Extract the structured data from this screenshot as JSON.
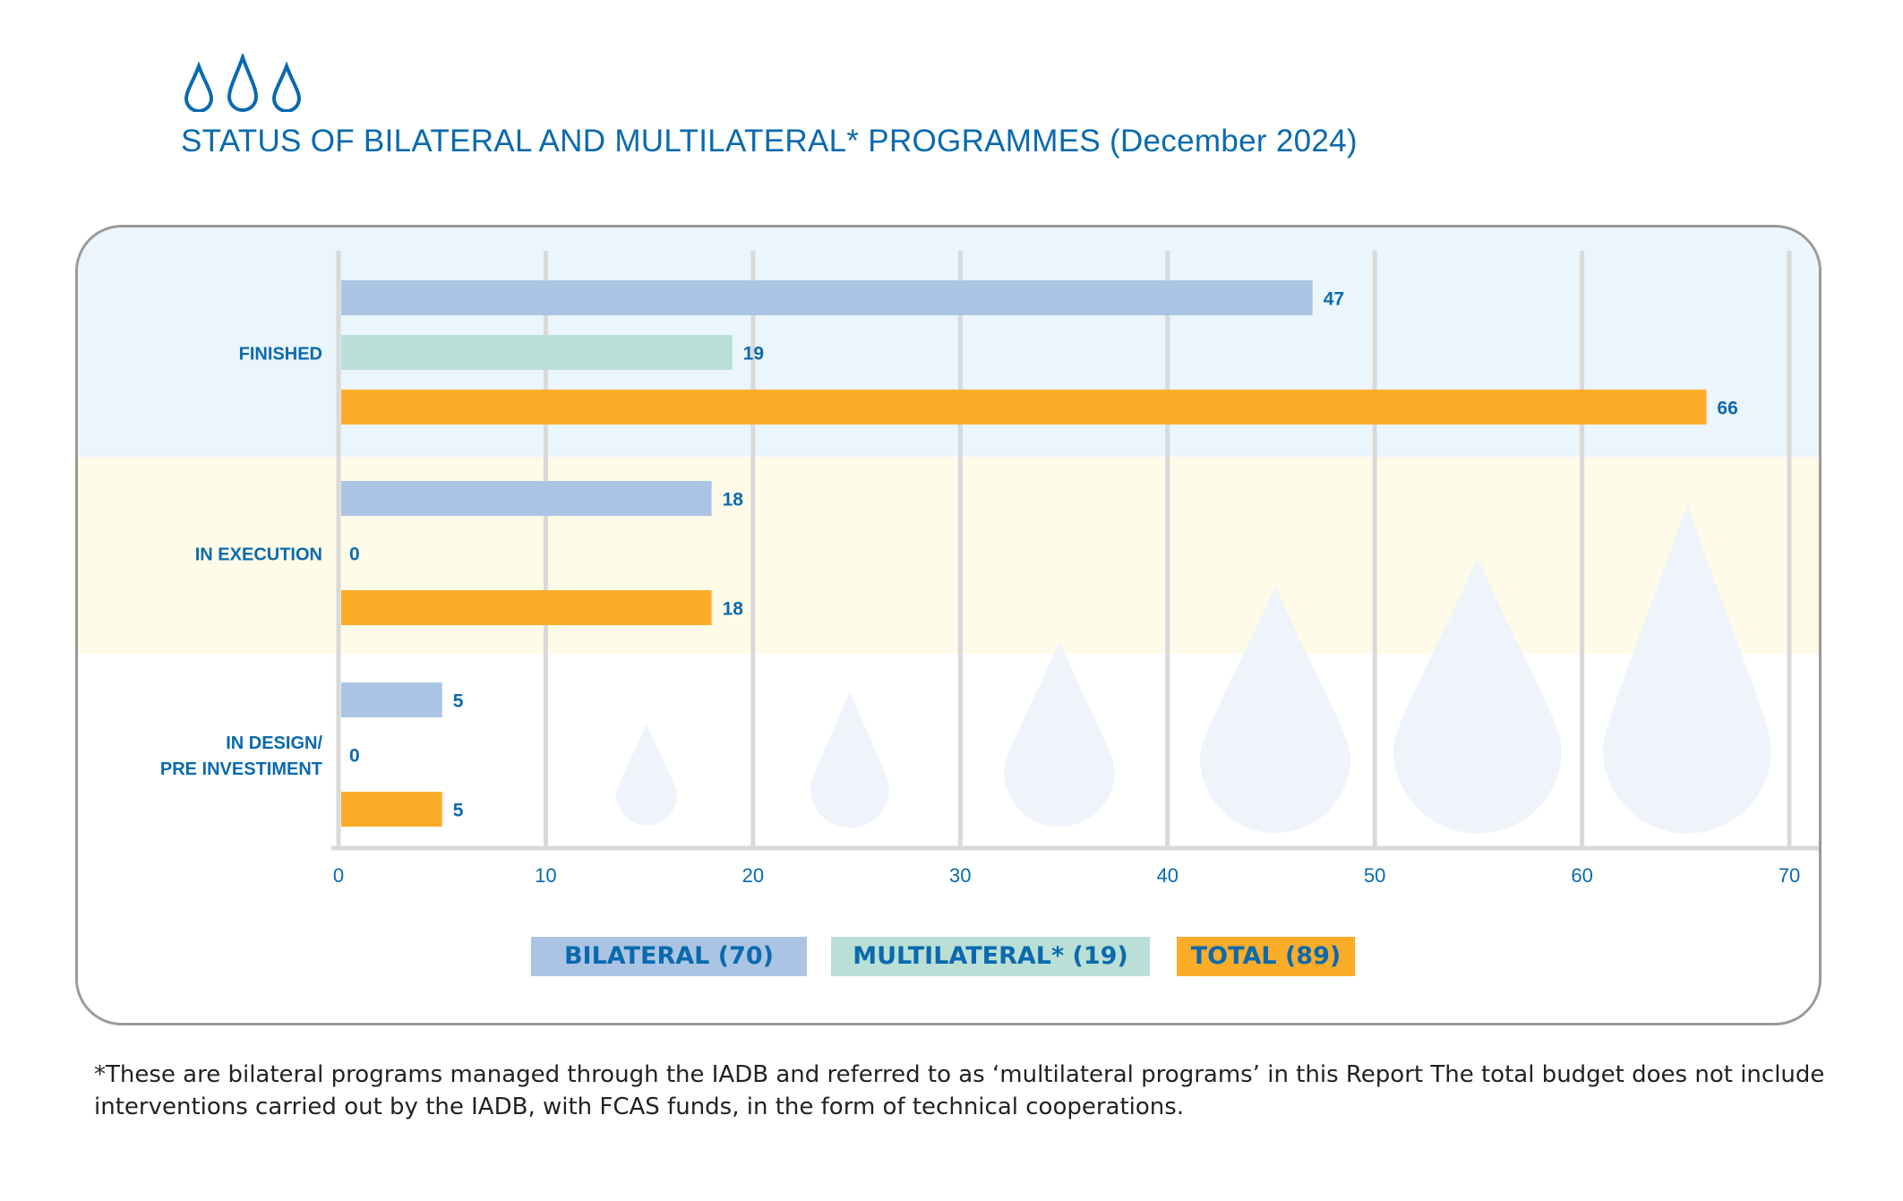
{
  "title": "STATUS OF BILATERAL AND MULTILATERAL* PROGRAMMES  (December 2024)",
  "chart_data": {
    "type": "bar",
    "orientation": "horizontal",
    "categories": [
      "FINISHED",
      "IN EXECUTION",
      "IN DESIGN/\nPRE INVESTIMENT"
    ],
    "series": [
      {
        "name": "BILATERAL (70)",
        "values": [
          47,
          18,
          5
        ],
        "color": "#abc4e3"
      },
      {
        "name": "MULTILATERAL* (19)",
        "values": [
          19,
          0,
          0
        ],
        "color": "#badfd6"
      },
      {
        "name": "TOTAL (89)",
        "values": [
          66,
          18,
          5
        ],
        "color": "#fbac29"
      }
    ],
    "xlim": [
      0,
      70
    ],
    "xticks": [
      0,
      10,
      20,
      30,
      40,
      50,
      60,
      70
    ],
    "grid": true,
    "legend_position": "bottom",
    "band_colors": [
      "#eaf5fc",
      "#fefbe9",
      "#ffffff"
    ]
  },
  "footnote": "*These are bilateral programs managed through the IADB and referred to as ‘multilateral programs’ in this Report The total budget does not include interventions carried out by the IADB, with FCAS funds, in the form of technical cooperations."
}
